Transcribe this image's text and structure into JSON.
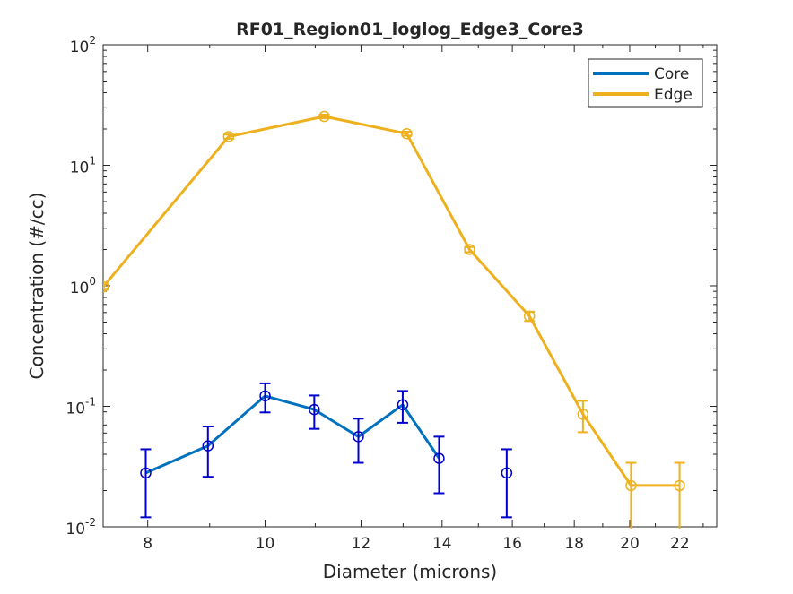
{
  "chart_data": {
    "type": "line",
    "title": "RF01_Region01_loglog_Edge3_Core3",
    "xlabel": "Diameter (microns)",
    "ylabel": "Concentration (#/cc)",
    "xscale": "log",
    "yscale": "log",
    "xlim": [
      7.35,
      23.6
    ],
    "ylim": [
      0.01,
      100
    ],
    "xticks": [
      8,
      10,
      12,
      14,
      16,
      18,
      20,
      22
    ],
    "yticks": [
      {
        "value": 0.01,
        "base": "10",
        "exp": "-2"
      },
      {
        "value": 0.1,
        "base": "10",
        "exp": "-1"
      },
      {
        "value": 1,
        "base": "10",
        "exp": "0"
      },
      {
        "value": 10,
        "base": "10",
        "exp": "1"
      },
      {
        "value": 100,
        "base": "10",
        "exp": "2"
      }
    ],
    "grid": false,
    "legend_location": "top-right",
    "series": [
      {
        "name": "Core",
        "color": "#0072BD",
        "errorbar_color": "#0000CC",
        "line_segments": [
          [
            0,
            1,
            2,
            3,
            4,
            5,
            6
          ]
        ],
        "points": [
          {
            "x": 7.97,
            "y": 0.028,
            "lo": 0.012,
            "hi": 0.044
          },
          {
            "x": 8.97,
            "y": 0.047,
            "lo": 0.026,
            "hi": 0.068
          },
          {
            "x": 10.0,
            "y": 0.122,
            "lo": 0.089,
            "hi": 0.155
          },
          {
            "x": 10.98,
            "y": 0.094,
            "lo": 0.065,
            "hi": 0.123
          },
          {
            "x": 11.94,
            "y": 0.056,
            "lo": 0.034,
            "hi": 0.079
          },
          {
            "x": 12.99,
            "y": 0.103,
            "lo": 0.073,
            "hi": 0.134
          },
          {
            "x": 13.92,
            "y": 0.037,
            "lo": 0.019,
            "hi": 0.056
          },
          {
            "x": 15.83,
            "y": 0.028,
            "lo": 0.012,
            "hi": 0.044
          }
        ]
      },
      {
        "name": "Edge",
        "color": "#EDB120",
        "errorbar_color": "#EDB120",
        "line_segments": [
          [
            0,
            1,
            2,
            3,
            4,
            5,
            6,
            7,
            8
          ]
        ],
        "points": [
          {
            "x": 7.35,
            "y": 0.98,
            "lo": 0.93,
            "hi": 1.03
          },
          {
            "x": 9.33,
            "y": 17.3,
            "lo": 16.6,
            "hi": 18.0
          },
          {
            "x": 11.19,
            "y": 25.4,
            "lo": 24.5,
            "hi": 26.3
          },
          {
            "x": 13.09,
            "y": 18.3,
            "lo": 17.6,
            "hi": 19.0
          },
          {
            "x": 14.75,
            "y": 2.0,
            "lo": 1.9,
            "hi": 2.1
          },
          {
            "x": 16.53,
            "y": 0.56,
            "lo": 0.51,
            "hi": 0.61
          },
          {
            "x": 18.3,
            "y": 0.086,
            "lo": 0.061,
            "hi": 0.111
          },
          {
            "x": 20.05,
            "y": 0.022,
            "lo": 0.0095,
            "hi": 0.034
          },
          {
            "x": 21.99,
            "y": 0.022,
            "lo": 0.0095,
            "hi": 0.034
          }
        ]
      }
    ]
  }
}
